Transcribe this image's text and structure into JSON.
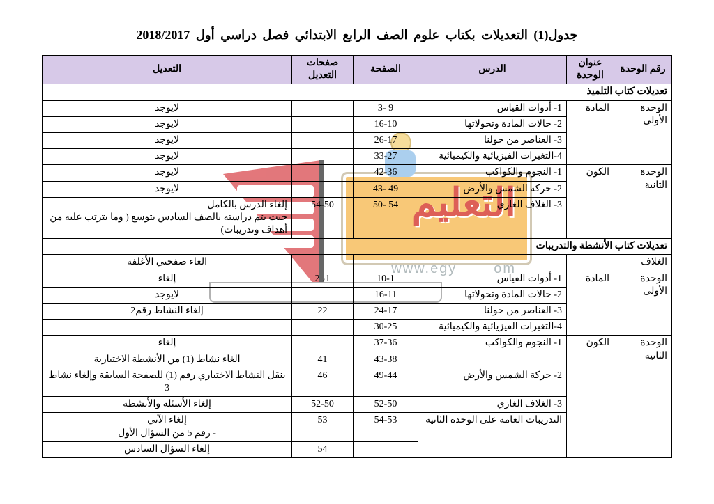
{
  "title": "جدول(1) التعديلات بكتاب علوم الصف الرابع الابتدائي فصل دراسي أول 2018/2017",
  "headers": {
    "unit_num": "رقم الوحدة",
    "unit_title": "عنوان الوحدة",
    "lesson": "الدرس",
    "page": "الصفحة",
    "edit_pages": "صفحات التعديل",
    "edit": "التعديل"
  },
  "section1": "تعديلات كتاب التلميذ",
  "section2": "تعديلات كتاب الأنشطة والتدريبات",
  "r": {
    "u1": "الوحدة الأولى",
    "u2": "الوحدة الثانية",
    "t1": "المادة",
    "t2": "الكون",
    "l1": "1- أدوات القياس",
    "l2": "2- حالات المادة وتحولاتها",
    "l3": "3- العناصر من حولنا",
    "l4": "4-التغيرات الفيزيائية والكيميائية",
    "l5": "1- النجوم والكواكب",
    "l6": "2- حركة الشمس والأرض",
    "l7": "3- الغلاف الغازي",
    "p1": "9 -3",
    "p2": "16-10",
    "p3": "26-17",
    "p4": "33-27",
    "p5": "42-36",
    "p6": "49 -43",
    "p7": "54 -50",
    "no": "لايوجد",
    "e7": "إلغاء الدرس بالكامل\nحيث يتم دراسته بالصف السادس بتوسع ( وما يترتب عليه من أهداف وتدريبات)",
    "ep7": "54-50",
    "cover": "الغلاف",
    "cover_e": "الغاء صفحتي الأغلفة",
    "b_l1": "1- أدوات القياس",
    "b_p1": "10-1",
    "b_ep1": "1، 2",
    "b_e1": "إلغاء",
    "b_l2": "2- حالات المادة وتحولاتها",
    "b_p2": "16-11",
    "b_e2": "لايوجد",
    "b_l3": "3- العناصر من حولنا",
    "b_p3": "24-17",
    "b_ep3": "22",
    "b_e3": "إلغاء النشاط رقم2",
    "b_l4": "4-التغيرات الفيزيائية والكيميائية",
    "b_p4": "30-25",
    "b_l5": "1- النجوم والكواكب",
    "b_p5": "37-36",
    "b_e5": "إلغاء",
    "b_l6": "",
    "b_p6": "43-38",
    "b_ep6": "41",
    "b_e6": "الغاء نشاط (1) من الأنشطة الاختيارية",
    "b_l7": "2- حركة الشمس والأرض",
    "b_p7": "49-44",
    "b_ep7": "46",
    "b_e7": "ينقل النشاط الاختياري رقم (1) للصفحة السابقة وإلغاء نشاط 3",
    "b_l8": "3- الغلاف الغازي",
    "b_p8": "52-50",
    "b_ep8": "52-50",
    "b_e8": "إلغاء الأسئلة والأنشطة",
    "b_l9": "التدريبات العامة على الوحدة الثانية",
    "b_p9": "54-53",
    "b_ep9": "53",
    "b_e9": "إلغاء الآتي\n-   رقم 5 من السؤال الأول",
    "b_ep10": "54",
    "b_e10": "إلغاء السؤال السادس"
  },
  "colors": {
    "header_bg": "#d7c9e8",
    "border": "#000000",
    "wm_orange": "#f6b64a",
    "wm_red": "#d22a1f",
    "wm_book": "#d94a4f"
  }
}
